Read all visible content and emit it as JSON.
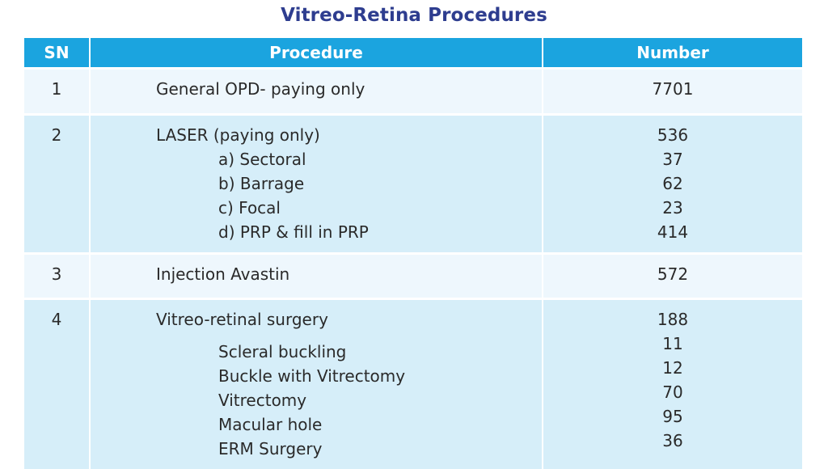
{
  "title": "Vitreo-Retina Procedures",
  "headers": {
    "sn": "SN",
    "procedure": "Procedure",
    "number": "Number"
  },
  "rows": [
    {
      "sn": "1",
      "procedure": "General OPD- paying only",
      "number": "7701"
    },
    {
      "sn": "2",
      "procedure": "LASER (paying only)",
      "number": "536",
      "sub": [
        {
          "label": "a) Sectoral",
          "number": "37"
        },
        {
          "label": "b) Barrage",
          "number": "62"
        },
        {
          "label": "c) Focal",
          "number": "23"
        },
        {
          "label": "d) PRP & fill in PRP",
          "number": "414"
        }
      ]
    },
    {
      "sn": "3",
      "procedure": "Injection Avastin",
      "number": "572"
    },
    {
      "sn": "4",
      "procedure": "Vitreo-retinal surgery",
      "number": "188",
      "sub": [
        {
          "label": "Scleral buckling",
          "number": "11"
        },
        {
          "label": "Buckle with Vitrectomy",
          "number": "12"
        },
        {
          "label": "Vitrectomy",
          "number": "70"
        },
        {
          "label": "Macular hole",
          "number": "95"
        },
        {
          "label": "ERM Surgery",
          "number": "36"
        }
      ]
    }
  ]
}
